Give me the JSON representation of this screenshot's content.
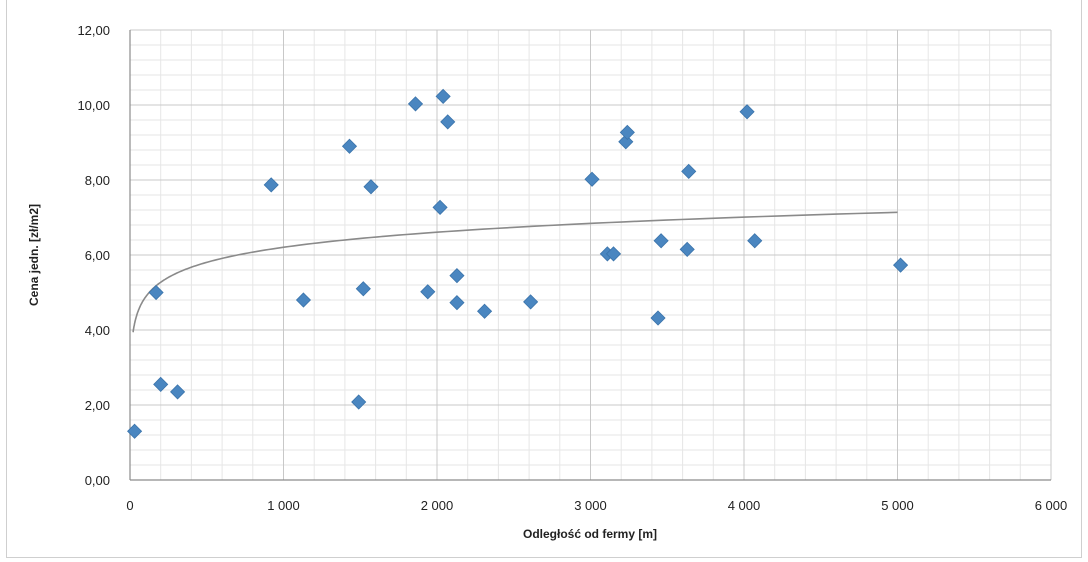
{
  "chart_data": {
    "type": "scatter",
    "title": "",
    "xlabel": "Odległość od fermy [m]",
    "ylabel": "Cena jedn. [zł/m2]",
    "xlim": [
      0,
      6000
    ],
    "ylim": [
      0,
      12
    ],
    "x_ticks": [
      "0",
      "1 000",
      "2 000",
      "3 000",
      "4 000",
      "5 000",
      "6 000"
    ],
    "y_ticks": [
      "0,00",
      "2,00",
      "4,00",
      "6,00",
      "8,00",
      "10,00",
      "12,00"
    ],
    "grid": true,
    "legend": "none",
    "marker_color": "#4a86c0",
    "trendline": {
      "type": "logarithmic",
      "color": "#8a8a8a",
      "a": 0.58,
      "b": 2.2,
      "x_range": [
        20,
        5000
      ]
    },
    "points": [
      {
        "x": 30,
        "y": 1.3
      },
      {
        "x": 170,
        "y": 5.0
      },
      {
        "x": 200,
        "y": 2.55
      },
      {
        "x": 310,
        "y": 2.35
      },
      {
        "x": 920,
        "y": 7.87
      },
      {
        "x": 1130,
        "y": 4.8
      },
      {
        "x": 1430,
        "y": 8.9
      },
      {
        "x": 1490,
        "y": 2.08
      },
      {
        "x": 1520,
        "y": 5.1
      },
      {
        "x": 1570,
        "y": 7.82
      },
      {
        "x": 1860,
        "y": 10.03
      },
      {
        "x": 1940,
        "y": 5.02
      },
      {
        "x": 2020,
        "y": 7.27
      },
      {
        "x": 2040,
        "y": 10.23
      },
      {
        "x": 2070,
        "y": 9.55
      },
      {
        "x": 2130,
        "y": 5.45
      },
      {
        "x": 2130,
        "y": 4.73
      },
      {
        "x": 2310,
        "y": 4.5
      },
      {
        "x": 2610,
        "y": 4.75
      },
      {
        "x": 3010,
        "y": 8.02
      },
      {
        "x": 3110,
        "y": 6.03
      },
      {
        "x": 3150,
        "y": 6.03
      },
      {
        "x": 3230,
        "y": 9.02
      },
      {
        "x": 3240,
        "y": 9.27
      },
      {
        "x": 3440,
        "y": 4.32
      },
      {
        "x": 3460,
        "y": 6.38
      },
      {
        "x": 3630,
        "y": 6.15
      },
      {
        "x": 3640,
        "y": 8.23
      },
      {
        "x": 4020,
        "y": 9.82
      },
      {
        "x": 4070,
        "y": 6.38
      },
      {
        "x": 5020,
        "y": 5.73
      }
    ]
  }
}
